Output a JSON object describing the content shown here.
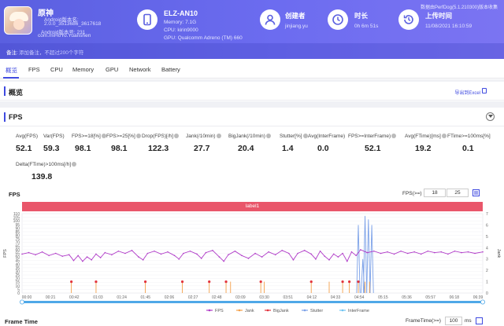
{
  "app": {
    "name": "原神",
    "version_line": "Android版本名:",
    "version_name": "2.0.0_3513686_3617618",
    "version_code": "Android版本号: 231",
    "package": "com.miHoYo.Yuanshen"
  },
  "device": {
    "model": "ELZ-AN10",
    "memory": "Memory: 7.1G",
    "cpu": "CPU: kirin9000",
    "gpu": "GPU: Qualcomm Adreno (TM) 660"
  },
  "creator": {
    "label": "创建者",
    "value": "jinjiang.yu"
  },
  "duration": {
    "label": "时长",
    "value": "0h 6m 51s"
  },
  "upload": {
    "label": "上传时间",
    "value": "11/08/2021 16:10:59"
  },
  "brand": "数据由PerfDog(5.1.210300)版本收集",
  "note": {
    "label": "备注:",
    "placeholder": "添加备注，不超过200个字符"
  },
  "tabs": [
    "概览",
    "FPS",
    "CPU",
    "Memory",
    "GPU",
    "Network",
    "Battery"
  ],
  "overview": {
    "title": "概览",
    "action": "导出到Excel"
  },
  "fps_section": {
    "title": "FPS"
  },
  "stats": [
    {
      "label": "Avg(FPS)",
      "value": "52.1"
    },
    {
      "label": "Var(FPS)",
      "value": "59.3"
    },
    {
      "label": "FPS>=18[%]",
      "value": "98.1"
    },
    {
      "label": "FPS>=25[%]",
      "value": "98.1"
    },
    {
      "label": "Drop(FPS)[/h]",
      "value": "122.3"
    },
    {
      "label": "Jank(/10min)",
      "value": "27.7"
    },
    {
      "label": "BigJank(/10min)",
      "value": "20.4"
    },
    {
      "label": "Stutter[%]",
      "value": "1.4"
    },
    {
      "label": "Avg(InterFrame)",
      "value": "0.0"
    },
    {
      "label": "FPS>=InterFrame)",
      "value": "52.1"
    },
    {
      "label": "Avg(FTime)[ms]",
      "value": "19.2"
    },
    {
      "label": "FTime>=100ms[%]",
      "value": "0.1"
    },
    {
      "label": "Delta(FTime)>100ms[/h]",
      "value": "139.8"
    }
  ],
  "chart_header": {
    "title": "FPS",
    "threshold_label": "FPS(>=)",
    "threshold_1": "18",
    "threshold_2": "25",
    "label_bar": "label1"
  },
  "colors": {
    "fps": "#b03cc8",
    "jank": "#f4a04a",
    "bigjank": "#e2333d",
    "stutter": "#7da2e8",
    "interframe": "#6fc4f2"
  },
  "chart_data": {
    "type": "line",
    "title": "FPS",
    "xlabel": "",
    "ylabel": "FPS",
    "y2label": "Jank",
    "ylim": [
      0,
      110
    ],
    "y2lim": [
      0,
      7
    ],
    "yticks": [
      0,
      5,
      10,
      15,
      20,
      25,
      30,
      35,
      40,
      45,
      50,
      55,
      60,
      65,
      70,
      75,
      80,
      85,
      90,
      95,
      100,
      105,
      110
    ],
    "y2ticks": [
      0,
      1,
      2,
      3,
      4,
      5,
      6,
      7
    ],
    "x_ticks": [
      "00:00",
      "00:21",
      "00:42",
      "01:03",
      "01:24",
      "01:45",
      "02:06",
      "02:27",
      "02:48",
      "03:09",
      "03:30",
      "03:51",
      "04:12",
      "04:33",
      "04:54",
      "05:15",
      "05:36",
      "05:57",
      "06:18",
      "06:39"
    ],
    "x_range_sec": [
      0,
      411
    ],
    "legend": [
      "FPS",
      "Jank",
      "BigJank",
      "Stutter",
      "InterFrame"
    ],
    "legend_position": "bottom",
    "fps_series": [
      [
        0,
        54
      ],
      [
        6,
        56
      ],
      [
        12,
        53
      ],
      [
        18,
        57
      ],
      [
        24,
        52
      ],
      [
        30,
        55
      ],
      [
        36,
        51
      ],
      [
        42,
        53
      ],
      [
        46,
        45
      ],
      [
        50,
        52
      ],
      [
        54,
        44
      ],
      [
        58,
        50
      ],
      [
        62,
        46
      ],
      [
        66,
        54
      ],
      [
        70,
        49
      ],
      [
        74,
        56
      ],
      [
        80,
        53
      ],
      [
        86,
        58
      ],
      [
        92,
        55
      ],
      [
        98,
        59
      ],
      [
        104,
        50
      ],
      [
        108,
        46
      ],
      [
        112,
        55
      ],
      [
        118,
        58
      ],
      [
        124,
        54
      ],
      [
        130,
        57
      ],
      [
        136,
        52
      ],
      [
        140,
        47
      ],
      [
        144,
        55
      ],
      [
        150,
        58
      ],
      [
        156,
        54
      ],
      [
        160,
        48
      ],
      [
        164,
        56
      ],
      [
        170,
        59
      ],
      [
        176,
        50
      ],
      [
        180,
        44
      ],
      [
        184,
        53
      ],
      [
        190,
        58
      ],
      [
        196,
        52
      ],
      [
        202,
        48
      ],
      [
        208,
        55
      ],
      [
        214,
        50
      ],
      [
        220,
        57
      ],
      [
        226,
        53
      ],
      [
        232,
        59
      ],
      [
        238,
        55
      ],
      [
        242,
        46
      ],
      [
        246,
        55
      ],
      [
        252,
        59
      ],
      [
        258,
        54
      ],
      [
        262,
        47
      ],
      [
        266,
        58
      ],
      [
        270,
        51
      ],
      [
        274,
        46
      ],
      [
        278,
        54
      ],
      [
        282,
        50
      ],
      [
        286,
        55
      ],
      [
        290,
        44
      ],
      [
        294,
        57
      ],
      [
        298,
        52
      ],
      [
        302,
        60
      ],
      [
        308,
        56
      ],
      [
        314,
        58
      ],
      [
        320,
        55
      ],
      [
        326,
        57
      ],
      [
        332,
        54
      ],
      [
        338,
        58
      ],
      [
        344,
        55
      ],
      [
        350,
        57
      ],
      [
        356,
        54
      ],
      [
        362,
        58
      ],
      [
        368,
        56
      ],
      [
        374,
        57
      ],
      [
        380,
        54
      ],
      [
        386,
        58
      ],
      [
        392,
        56
      ],
      [
        398,
        57
      ],
      [
        404,
        55
      ],
      [
        411,
        57
      ]
    ],
    "jank_events_sec": [
      44,
      66,
      110,
      143,
      167,
      182,
      186,
      213,
      216,
      258,
      274,
      286,
      292,
      300,
      306,
      310
    ],
    "bigjank_events_sec": [
      44,
      66,
      110,
      143,
      167,
      182,
      213,
      258,
      286,
      292,
      300
    ],
    "stutter_spikes": [
      [
        300,
        6
      ],
      [
        304,
        3
      ],
      [
        306,
        6.8
      ],
      [
        309,
        6.5
      ],
      [
        312,
        6.0
      ]
    ]
  },
  "frame_time": {
    "title": "Frame Time",
    "label": "FrameTime(>=)",
    "value": "100",
    "unit": "ms"
  }
}
